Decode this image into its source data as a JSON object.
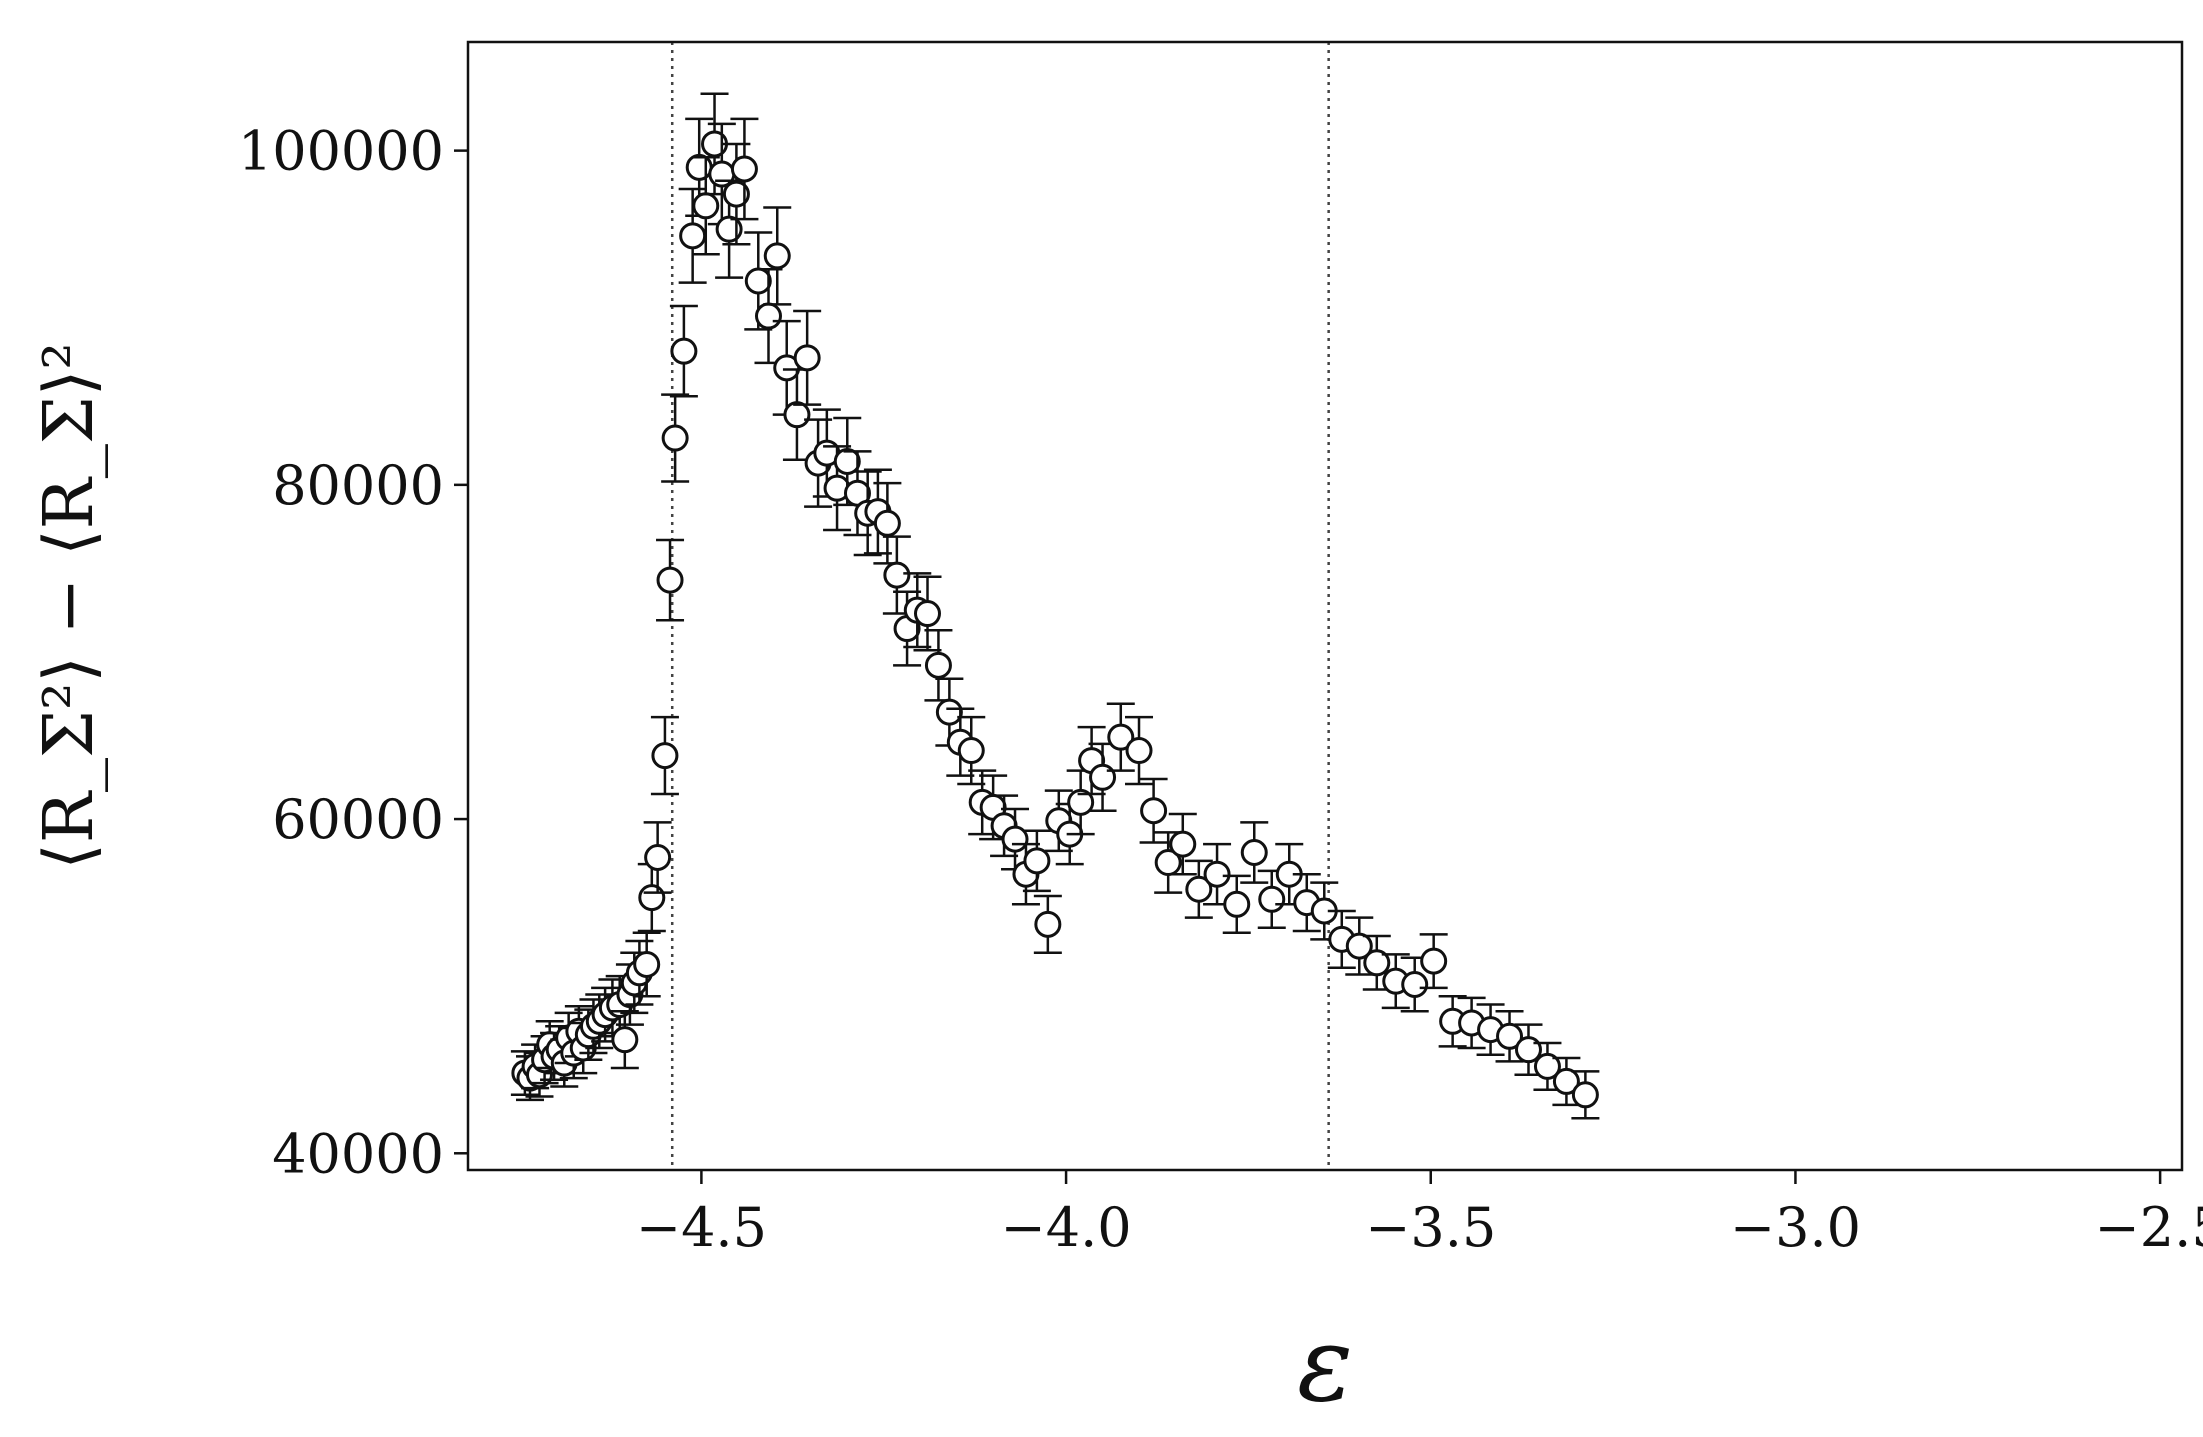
{
  "chart_data": {
    "type": "scatter",
    "title": "",
    "xlabel": "ε",
    "ylabel": "⟨R_Σ²⟩ − ⟨R_Σ⟩²",
    "xlim": [
      -4.82,
      -2.47
    ],
    "ylim": [
      39000,
      106500
    ],
    "x_ticks": [
      -4.5,
      -4.0,
      -3.5,
      -3.0,
      -2.5
    ],
    "y_ticks": [
      40000,
      60000,
      80000,
      100000
    ],
    "x_tick_labels": [
      "−4.5",
      "−4.0",
      "−3.5",
      "−3.0",
      "−2.5"
    ],
    "y_tick_labels": [
      "40000",
      "60000",
      "80000",
      "100000"
    ],
    "grid": false,
    "legend": "none",
    "marker": "open-circle",
    "colors": {
      "marker_fill": "#ffffff",
      "marker_edge": "#111111",
      "errorbar": "#111111",
      "vline": "#444444"
    },
    "vlines": [
      -4.54,
      -3.64
    ],
    "series": [
      {
        "name": "",
        "points": [
          [
            -4.742,
            44800,
            1300
          ],
          [
            -4.735,
            44500,
            1300
          ],
          [
            -4.728,
            45200,
            1300
          ],
          [
            -4.722,
            44700,
            1300
          ],
          [
            -4.715,
            45600,
            1400
          ],
          [
            -4.708,
            46500,
            1400
          ],
          [
            -4.702,
            45800,
            1400
          ],
          [
            -4.695,
            46200,
            1400
          ],
          [
            -4.688,
            45400,
            1400
          ],
          [
            -4.682,
            46900,
            1500
          ],
          [
            -4.675,
            46000,
            1500
          ],
          [
            -4.668,
            47300,
            1500
          ],
          [
            -4.662,
            46300,
            1500
          ],
          [
            -4.655,
            47100,
            1500
          ],
          [
            -4.648,
            47600,
            1600
          ],
          [
            -4.64,
            47900,
            1600
          ],
          [
            -4.632,
            48300,
            1600
          ],
          [
            -4.622,
            48700,
            1700
          ],
          [
            -4.612,
            48900,
            1700
          ],
          [
            -4.605,
            46800,
            1700
          ],
          [
            -4.598,
            49500,
            1800
          ],
          [
            -4.592,
            50200,
            1800
          ],
          [
            -4.585,
            50800,
            1900
          ],
          [
            -4.575,
            51300,
            1900
          ],
          [
            -4.568,
            55300,
            2000
          ],
          [
            -4.56,
            57700,
            2100
          ],
          [
            -4.55,
            63800,
            2300
          ],
          [
            -4.543,
            74300,
            2400
          ],
          [
            -4.536,
            82800,
            2600
          ],
          [
            -4.524,
            88000,
            2700
          ],
          [
            -4.512,
            94900,
            2800
          ],
          [
            -4.503,
            99000,
            2900
          ],
          [
            -4.494,
            96700,
            2900
          ],
          [
            -4.482,
            100400,
            3000
          ],
          [
            -4.472,
            98600,
            3000
          ],
          [
            -4.462,
            95300,
            2900
          ],
          [
            -4.452,
            97400,
            3000
          ],
          [
            -4.441,
            98900,
            3000
          ],
          [
            -4.422,
            92200,
            2900
          ],
          [
            -4.408,
            90100,
            2800
          ],
          [
            -4.396,
            93700,
            2900
          ],
          [
            -4.383,
            87000,
            2800
          ],
          [
            -4.369,
            84200,
            2700
          ],
          [
            -4.355,
            87600,
            2800
          ],
          [
            -4.34,
            81300,
            2600
          ],
          [
            -4.328,
            81900,
            2600
          ],
          [
            -4.314,
            79800,
            2500
          ],
          [
            -4.3,
            81400,
            2600
          ],
          [
            -4.286,
            79500,
            2500
          ],
          [
            -4.272,
            78300,
            2500
          ],
          [
            -4.258,
            78400,
            2500
          ],
          [
            -4.245,
            77700,
            2400
          ],
          [
            -4.232,
            74600,
            2300
          ],
          [
            -4.218,
            71400,
            2200
          ],
          [
            -4.204,
            72500,
            2200
          ],
          [
            -4.19,
            72300,
            2200
          ],
          [
            -4.175,
            69200,
            2100
          ],
          [
            -4.16,
            66400,
            2000
          ],
          [
            -4.145,
            64600,
            2000
          ],
          [
            -4.13,
            64100,
            2000
          ],
          [
            -4.115,
            61000,
            1900
          ],
          [
            -4.1,
            60700,
            1900
          ],
          [
            -4.085,
            59600,
            1800
          ],
          [
            -4.07,
            58800,
            1800
          ],
          [
            -4.055,
            56700,
            1800
          ],
          [
            -4.04,
            57500,
            1800
          ],
          [
            -4.025,
            53700,
            1700
          ],
          [
            -4.01,
            59900,
            1800
          ],
          [
            -3.995,
            59100,
            1800
          ],
          [
            -3.98,
            61000,
            1900
          ],
          [
            -3.965,
            63500,
            2000
          ],
          [
            -3.95,
            62500,
            2000
          ],
          [
            -3.925,
            64900,
            2000
          ],
          [
            -3.9,
            64100,
            2000
          ],
          [
            -3.88,
            60500,
            1900
          ],
          [
            -3.86,
            57400,
            1800
          ],
          [
            -3.84,
            58500,
            1800
          ],
          [
            -3.818,
            55800,
            1700
          ],
          [
            -3.793,
            56700,
            1800
          ],
          [
            -3.766,
            54900,
            1700
          ],
          [
            -3.742,
            58000,
            1800
          ],
          [
            -3.718,
            55200,
            1700
          ],
          [
            -3.694,
            56700,
            1800
          ],
          [
            -3.67,
            55000,
            1700
          ],
          [
            -3.646,
            54500,
            1700
          ],
          [
            -3.622,
            52800,
            1700
          ],
          [
            -3.598,
            52400,
            1700
          ],
          [
            -3.574,
            51400,
            1600
          ],
          [
            -3.548,
            50300,
            1600
          ],
          [
            -3.522,
            50100,
            1600
          ],
          [
            -3.496,
            51500,
            1600
          ],
          [
            -3.47,
            47900,
            1500
          ],
          [
            -3.444,
            47800,
            1500
          ],
          [
            -3.418,
            47400,
            1500
          ],
          [
            -3.392,
            47000,
            1500
          ],
          [
            -3.366,
            46200,
            1500
          ],
          [
            -3.34,
            45200,
            1400
          ],
          [
            -3.314,
            44300,
            1400
          ],
          [
            -3.288,
            43500,
            1400
          ]
        ]
      }
    ]
  }
}
